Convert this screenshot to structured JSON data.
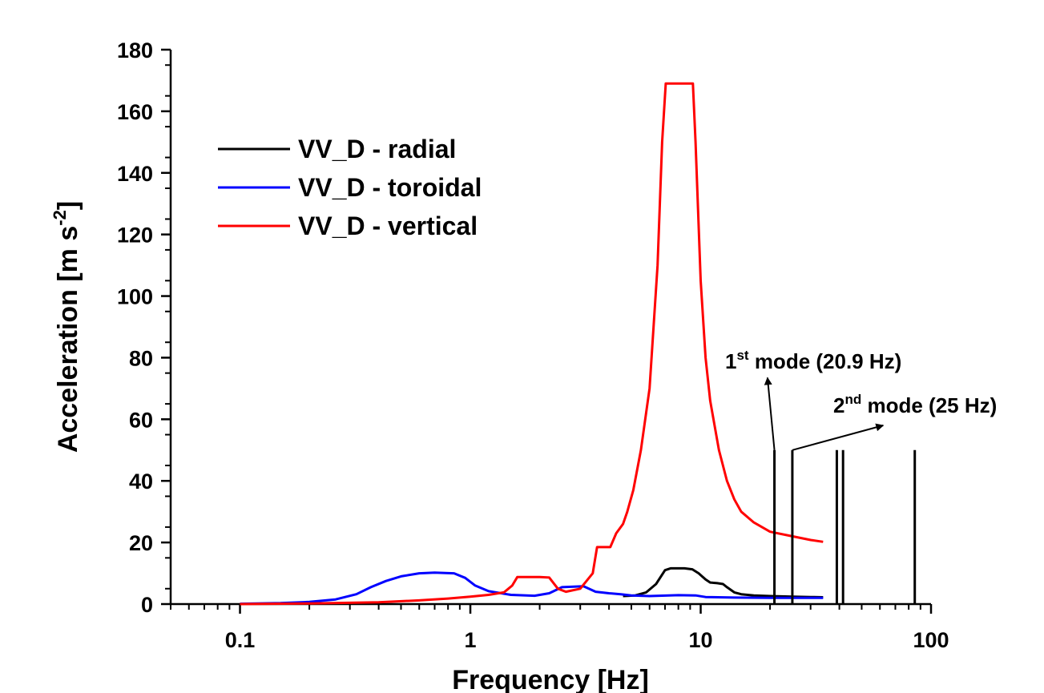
{
  "chart_data": {
    "type": "line",
    "title": "",
    "xlabel": "Frequency [Hz]",
    "ylabel": "Acceleration [m s",
    "ylabel_superscript": "-2",
    "ylabel_suffix": "]",
    "xscale": "log",
    "xlim": [
      0.05,
      100
    ],
    "ylim": [
      0,
      180
    ],
    "grid": false,
    "legend_position": "top-left",
    "x_ticks": [
      {
        "value": 0.1,
        "label": "0.1"
      },
      {
        "value": 1,
        "label": "1"
      },
      {
        "value": 10,
        "label": "10"
      },
      {
        "value": 100,
        "label": "100"
      }
    ],
    "y_ticks": [
      {
        "value": 0,
        "label": "0"
      },
      {
        "value": 20,
        "label": "20"
      },
      {
        "value": 40,
        "label": "40"
      },
      {
        "value": 60,
        "label": "60"
      },
      {
        "value": 80,
        "label": "80"
      },
      {
        "value": 100,
        "label": "100"
      },
      {
        "value": 120,
        "label": "120"
      },
      {
        "value": 140,
        "label": "140"
      },
      {
        "value": 160,
        "label": "160"
      },
      {
        "value": 180,
        "label": "180"
      }
    ],
    "series": [
      {
        "name": "VV_D - radial",
        "color": "#000000",
        "points": [
          [
            4.6,
            2.6
          ],
          [
            5.2,
            2.8
          ],
          [
            5.8,
            3.8
          ],
          [
            6.4,
            6.5
          ],
          [
            7,
            11
          ],
          [
            7.4,
            11.6
          ],
          [
            8.5,
            11.6
          ],
          [
            9.2,
            11.3
          ],
          [
            9.8,
            10
          ],
          [
            10.5,
            8
          ],
          [
            11,
            7
          ],
          [
            11.8,
            6.8
          ],
          [
            12.5,
            6.5
          ],
          [
            13,
            5.5
          ],
          [
            14,
            3.8
          ],
          [
            15,
            3.2
          ],
          [
            17,
            2.8
          ],
          [
            20,
            2.6
          ],
          [
            25,
            2.4
          ],
          [
            30,
            2.3
          ],
          [
            34,
            2.2
          ]
        ]
      },
      {
        "name": "VV_D - toroidal",
        "color": "#0000ff",
        "points": [
          [
            0.1,
            0.1
          ],
          [
            0.15,
            0.3
          ],
          [
            0.2,
            0.7
          ],
          [
            0.26,
            1.5
          ],
          [
            0.32,
            3.2
          ],
          [
            0.37,
            5.5
          ],
          [
            0.43,
            7.5
          ],
          [
            0.5,
            9
          ],
          [
            0.6,
            10
          ],
          [
            0.7,
            10.2
          ],
          [
            0.85,
            10
          ],
          [
            0.95,
            8.5
          ],
          [
            1.05,
            6
          ],
          [
            1.2,
            4.2
          ],
          [
            1.5,
            3
          ],
          [
            1.9,
            2.7
          ],
          [
            2.2,
            3.5
          ],
          [
            2.5,
            5.5
          ],
          [
            3.1,
            5.8
          ],
          [
            3.5,
            4
          ],
          [
            4,
            3.5
          ],
          [
            4.5,
            3.2
          ],
          [
            5,
            2.8
          ],
          [
            6,
            2.6
          ],
          [
            8,
            2.9
          ],
          [
            9.5,
            2.8
          ],
          [
            10.5,
            2.3
          ],
          [
            14,
            2.1
          ],
          [
            20,
            2
          ],
          [
            34,
            2
          ]
        ]
      },
      {
        "name": "VV_D - vertical",
        "color": "#ff0000",
        "points": [
          [
            0.1,
            0
          ],
          [
            0.2,
            0.2
          ],
          [
            0.4,
            0.6
          ],
          [
            0.6,
            1.2
          ],
          [
            0.8,
            1.8
          ],
          [
            1,
            2.4
          ],
          [
            1.2,
            3
          ],
          [
            1.4,
            3.8
          ],
          [
            1.52,
            6
          ],
          [
            1.6,
            8.8
          ],
          [
            2,
            8.8
          ],
          [
            2.2,
            8.6
          ],
          [
            2.4,
            5
          ],
          [
            2.6,
            4
          ],
          [
            3,
            5
          ],
          [
            3.4,
            10
          ],
          [
            3.55,
            18.5
          ],
          [
            4.05,
            18.5
          ],
          [
            4.3,
            23
          ],
          [
            4.6,
            26
          ],
          [
            4.8,
            30
          ],
          [
            5.1,
            37
          ],
          [
            5.5,
            50
          ],
          [
            6,
            70
          ],
          [
            6.5,
            110
          ],
          [
            6.8,
            150
          ],
          [
            7.05,
            169
          ],
          [
            9.25,
            169
          ],
          [
            9.5,
            150
          ],
          [
            10,
            105
          ],
          [
            10.5,
            80
          ],
          [
            11,
            66
          ],
          [
            12,
            50
          ],
          [
            13,
            40
          ],
          [
            14,
            34
          ],
          [
            15,
            30
          ],
          [
            17,
            26.5
          ],
          [
            20,
            23.5
          ],
          [
            25,
            22
          ],
          [
            30,
            20.8
          ],
          [
            34,
            20.2
          ]
        ]
      }
    ],
    "mode_lines": {
      "color": "#000000",
      "x": [
        20.9,
        25,
        39,
        41.5,
        85
      ],
      "height": 50
    },
    "annotations": [
      {
        "base": "1",
        "sup": "st",
        "text": " mode (20.9 Hz)",
        "arrow_from": [
          20.9,
          50
        ],
        "arrow_to": [
          19.5,
          73.5
        ]
      },
      {
        "base": "2",
        "sup": "nd",
        "text": " mode (25 Hz)",
        "arrow_from": [
          25,
          50
        ],
        "arrow_to": [
          62,
          58
        ]
      }
    ]
  }
}
